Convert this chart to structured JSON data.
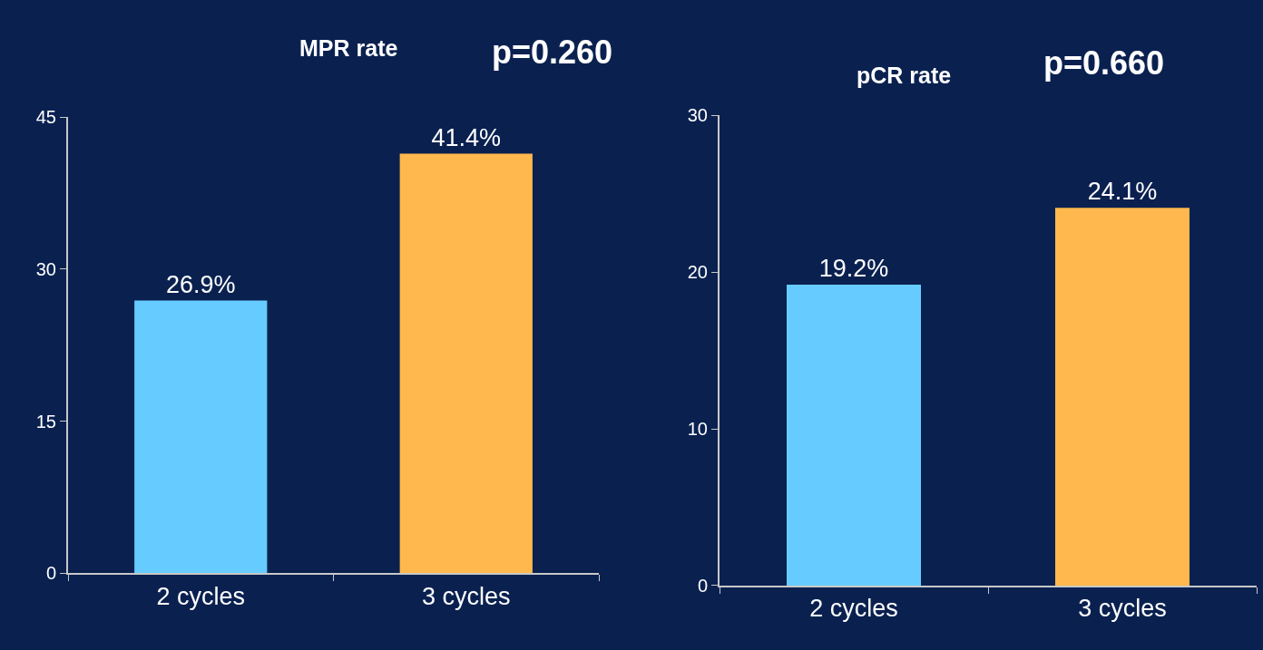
{
  "chart_data": [
    {
      "type": "bar",
      "title": "MPR rate",
      "categories": [
        "2 cycles",
        "3 cycles"
      ],
      "values": [
        26.9,
        41.4
      ],
      "colors": [
        "#66ccff",
        "#ffb84d"
      ],
      "value_labels": [
        "26.9%",
        "41.4%"
      ],
      "ylim": [
        0,
        45
      ],
      "yticks": [
        0,
        15,
        30,
        45
      ],
      "grid": false,
      "annotations": [
        "p=0.260"
      ]
    },
    {
      "type": "bar",
      "title": "pCR rate",
      "categories": [
        "2 cycles",
        "3 cycles"
      ],
      "values": [
        19.2,
        24.1
      ],
      "colors": [
        "#66ccff",
        "#ffb84d"
      ],
      "value_labels": [
        "19.2%",
        "24.1%"
      ],
      "ylim": [
        0,
        30
      ],
      "yticks": [
        0,
        10,
        20,
        30
      ],
      "grid": false,
      "annotations": [
        "p=0.660"
      ]
    }
  ]
}
